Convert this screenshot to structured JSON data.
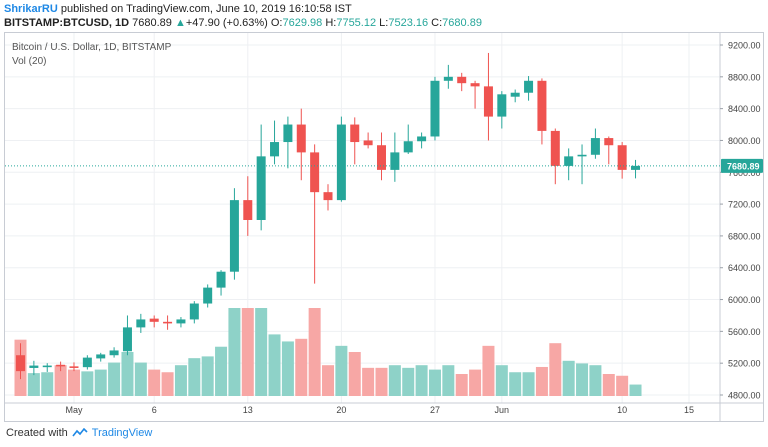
{
  "header": {
    "author": "ShrikarRU",
    "published_text": "published on TradingView.com, June 10, 2019 16:10:58 IST",
    "symbol": "BITSTAMP:BTCUSD, 1D",
    "last": "7680.89",
    "arrow_icon": "triangle-up-icon",
    "change": "+47.90 (+0.63%)",
    "o_label": "O:",
    "o_value": "7629.98",
    "h_label": "H:",
    "h_value": "7755.12",
    "l_label": "L:",
    "l_value": "7523.16",
    "c_label": "C:",
    "c_value": "7680.89"
  },
  "chart_title": "Bitcoin / U.S. Dollar, 1D, BITSTAMP",
  "volume_label": "Vol (20)",
  "price_tag": "7680.89",
  "footer": {
    "created_with": "Created with",
    "brand": "TradingView"
  },
  "colors": {
    "up": "#26a69a",
    "down": "#ef5350",
    "vol_up": "#8ed2c8",
    "vol_down": "#f7a7a5",
    "last_line": "#26a69a"
  },
  "chart_data": {
    "type": "candlestick",
    "title": "Bitcoin / U.S. Dollar, 1D, BITSTAMP",
    "ylim": [
      4700,
      9400
    ],
    "yticks": [
      4800,
      5200,
      5600,
      6000,
      6400,
      6800,
      7200,
      7600,
      8000,
      8400,
      8800,
      9200
    ],
    "ytick_labels": [
      "4800.00",
      "5200.00",
      "5600.00",
      "6000.00",
      "6400.00",
      "6800.00",
      "7200.00",
      "7600.00",
      "8000.00",
      "8400.00",
      "8800.00",
      "9200.00"
    ],
    "xtick_labels": [
      {
        "day": 4,
        "label": "May"
      },
      {
        "day": 10,
        "label": "6"
      },
      {
        "day": 17,
        "label": "13"
      },
      {
        "day": 24,
        "label": "20"
      },
      {
        "day": 31,
        "label": "27"
      },
      {
        "day": 36,
        "label": "Jun"
      },
      {
        "day": 45,
        "label": "10"
      },
      {
        "day": 50,
        "label": "15"
      }
    ],
    "last_price": 7680.89,
    "candles": [
      {
        "o": 5300,
        "h": 5450,
        "l": 5000,
        "c": 5100
      },
      {
        "o": 5140,
        "h": 5230,
        "l": 5050,
        "c": 5170
      },
      {
        "o": 5150,
        "h": 5200,
        "l": 5090,
        "c": 5170
      },
      {
        "o": 5180,
        "h": 5220,
        "l": 5100,
        "c": 5160
      },
      {
        "o": 5160,
        "h": 5210,
        "l": 5100,
        "c": 5140
      },
      {
        "o": 5150,
        "h": 5300,
        "l": 5120,
        "c": 5270
      },
      {
        "o": 5260,
        "h": 5330,
        "l": 5220,
        "c": 5310
      },
      {
        "o": 5300,
        "h": 5400,
        "l": 5270,
        "c": 5360
      },
      {
        "o": 5350,
        "h": 5800,
        "l": 5300,
        "c": 5650
      },
      {
        "o": 5650,
        "h": 5820,
        "l": 5580,
        "c": 5750
      },
      {
        "o": 5760,
        "h": 5800,
        "l": 5650,
        "c": 5720
      },
      {
        "o": 5720,
        "h": 5800,
        "l": 5620,
        "c": 5700
      },
      {
        "o": 5700,
        "h": 5780,
        "l": 5650,
        "c": 5750
      },
      {
        "o": 5750,
        "h": 5980,
        "l": 5700,
        "c": 5950
      },
      {
        "o": 5950,
        "h": 6190,
        "l": 5900,
        "c": 6150
      },
      {
        "o": 6150,
        "h": 6370,
        "l": 6050,
        "c": 6350
      },
      {
        "o": 6350,
        "h": 7400,
        "l": 6250,
        "c": 7250
      },
      {
        "o": 7250,
        "h": 7550,
        "l": 6800,
        "c": 7000
      },
      {
        "o": 7000,
        "h": 8200,
        "l": 6870,
        "c": 7800
      },
      {
        "o": 7800,
        "h": 8250,
        "l": 7700,
        "c": 7980
      },
      {
        "o": 7980,
        "h": 8300,
        "l": 7650,
        "c": 8200
      },
      {
        "o": 8200,
        "h": 8400,
        "l": 7500,
        "c": 7850
      },
      {
        "o": 7850,
        "h": 7950,
        "l": 6200,
        "c": 7350
      },
      {
        "o": 7350,
        "h": 7450,
        "l": 7120,
        "c": 7250
      },
      {
        "o": 7250,
        "h": 8300,
        "l": 7230,
        "c": 8200
      },
      {
        "o": 8200,
        "h": 8290,
        "l": 7700,
        "c": 7980
      },
      {
        "o": 8000,
        "h": 8100,
        "l": 7900,
        "c": 7940
      },
      {
        "o": 7940,
        "h": 8100,
        "l": 7500,
        "c": 7630
      },
      {
        "o": 7630,
        "h": 8100,
        "l": 7480,
        "c": 7850
      },
      {
        "o": 7850,
        "h": 8200,
        "l": 7830,
        "c": 7990
      },
      {
        "o": 7990,
        "h": 8100,
        "l": 7900,
        "c": 8050
      },
      {
        "o": 8050,
        "h": 8800,
        "l": 8000,
        "c": 8750
      },
      {
        "o": 8750,
        "h": 8950,
        "l": 8650,
        "c": 8800
      },
      {
        "o": 8800,
        "h": 8850,
        "l": 8620,
        "c": 8720
      },
      {
        "o": 8720,
        "h": 8750,
        "l": 8400,
        "c": 8680
      },
      {
        "o": 8680,
        "h": 9100,
        "l": 8000,
        "c": 8300
      },
      {
        "o": 8300,
        "h": 8620,
        "l": 8150,
        "c": 8580
      },
      {
        "o": 8550,
        "h": 8640,
        "l": 8480,
        "c": 8600
      },
      {
        "o": 8600,
        "h": 8810,
        "l": 8500,
        "c": 8750
      },
      {
        "o": 8750,
        "h": 8780,
        "l": 7950,
        "c": 8120
      },
      {
        "o": 8120,
        "h": 8150,
        "l": 7450,
        "c": 7680
      },
      {
        "o": 7680,
        "h": 7900,
        "l": 7500,
        "c": 7800
      },
      {
        "o": 7800,
        "h": 7950,
        "l": 7450,
        "c": 7820
      },
      {
        "o": 7820,
        "h": 8150,
        "l": 7770,
        "c": 8030
      },
      {
        "o": 8030,
        "h": 8050,
        "l": 7700,
        "c": 7940
      },
      {
        "o": 7940,
        "h": 7980,
        "l": 7520,
        "c": 7630
      },
      {
        "o": 7629.98,
        "h": 7755.12,
        "l": 7523.16,
        "c": 7680.89
      }
    ],
    "volume": [
      0.64,
      0.26,
      0.27,
      0.35,
      0.3,
      0.28,
      0.3,
      0.38,
      0.5,
      0.38,
      0.3,
      0.27,
      0.35,
      0.43,
      0.45,
      0.56,
      1.0,
      1.0,
      1.0,
      0.7,
      0.62,
      0.65,
      1.0,
      0.35,
      0.57,
      0.5,
      0.32,
      0.32,
      0.35,
      0.32,
      0.35,
      0.3,
      0.35,
      0.25,
      0.3,
      0.57,
      0.35,
      0.27,
      0.27,
      0.33,
      0.6,
      0.4,
      0.37,
      0.35,
      0.25,
      0.23,
      0.13
    ]
  }
}
